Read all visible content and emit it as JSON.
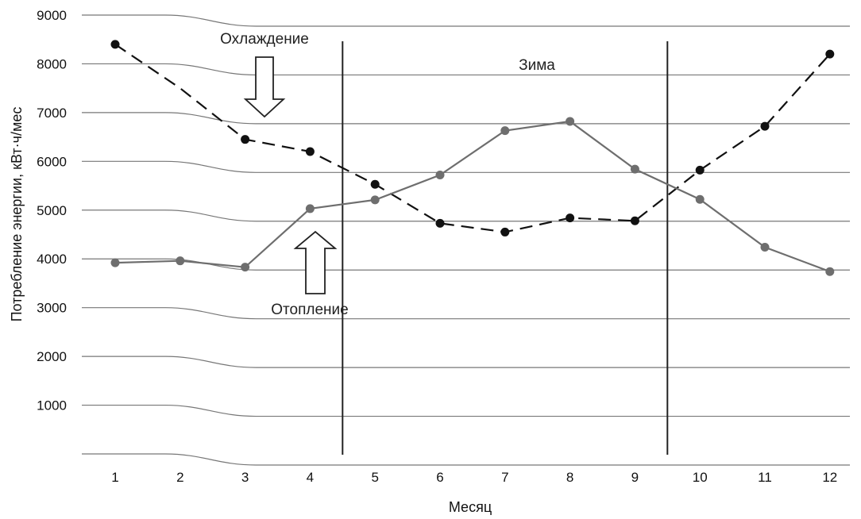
{
  "chart_data": {
    "type": "line",
    "xlabel": "Месяц",
    "ylabel": "Потребление энергии, кВт·ч/мес",
    "categories": [
      "1",
      "2",
      "3",
      "4",
      "5",
      "6",
      "7",
      "8",
      "9",
      "10",
      "11",
      "12"
    ],
    "yticks": [
      "1000",
      "2000",
      "3000",
      "4000",
      "5000",
      "6000",
      "7000",
      "8000",
      "9000"
    ],
    "ylim": [
      0,
      9000
    ],
    "grid": true,
    "series": [
      {
        "name": "",
        "style": "dashed",
        "color": "#111111",
        "values": [
          8400,
          7500,
          6450,
          6200,
          5530,
          4730,
          4550,
          4840,
          4780,
          5820,
          6720,
          8200
        ]
      },
      {
        "name": "",
        "style": "solid",
        "color": "#6e6e6e",
        "values": [
          3920,
          3960,
          3830,
          5030,
          5210,
          5720,
          6630,
          6820,
          5840,
          5220,
          4240,
          3740
        ]
      }
    ],
    "vertical_lines_between": [
      [
        4,
        5
      ],
      [
        9,
        10
      ]
    ],
    "annotations": {
      "cooling": "Охлаждение",
      "heating": "Отопление",
      "winter": "Зима"
    }
  }
}
